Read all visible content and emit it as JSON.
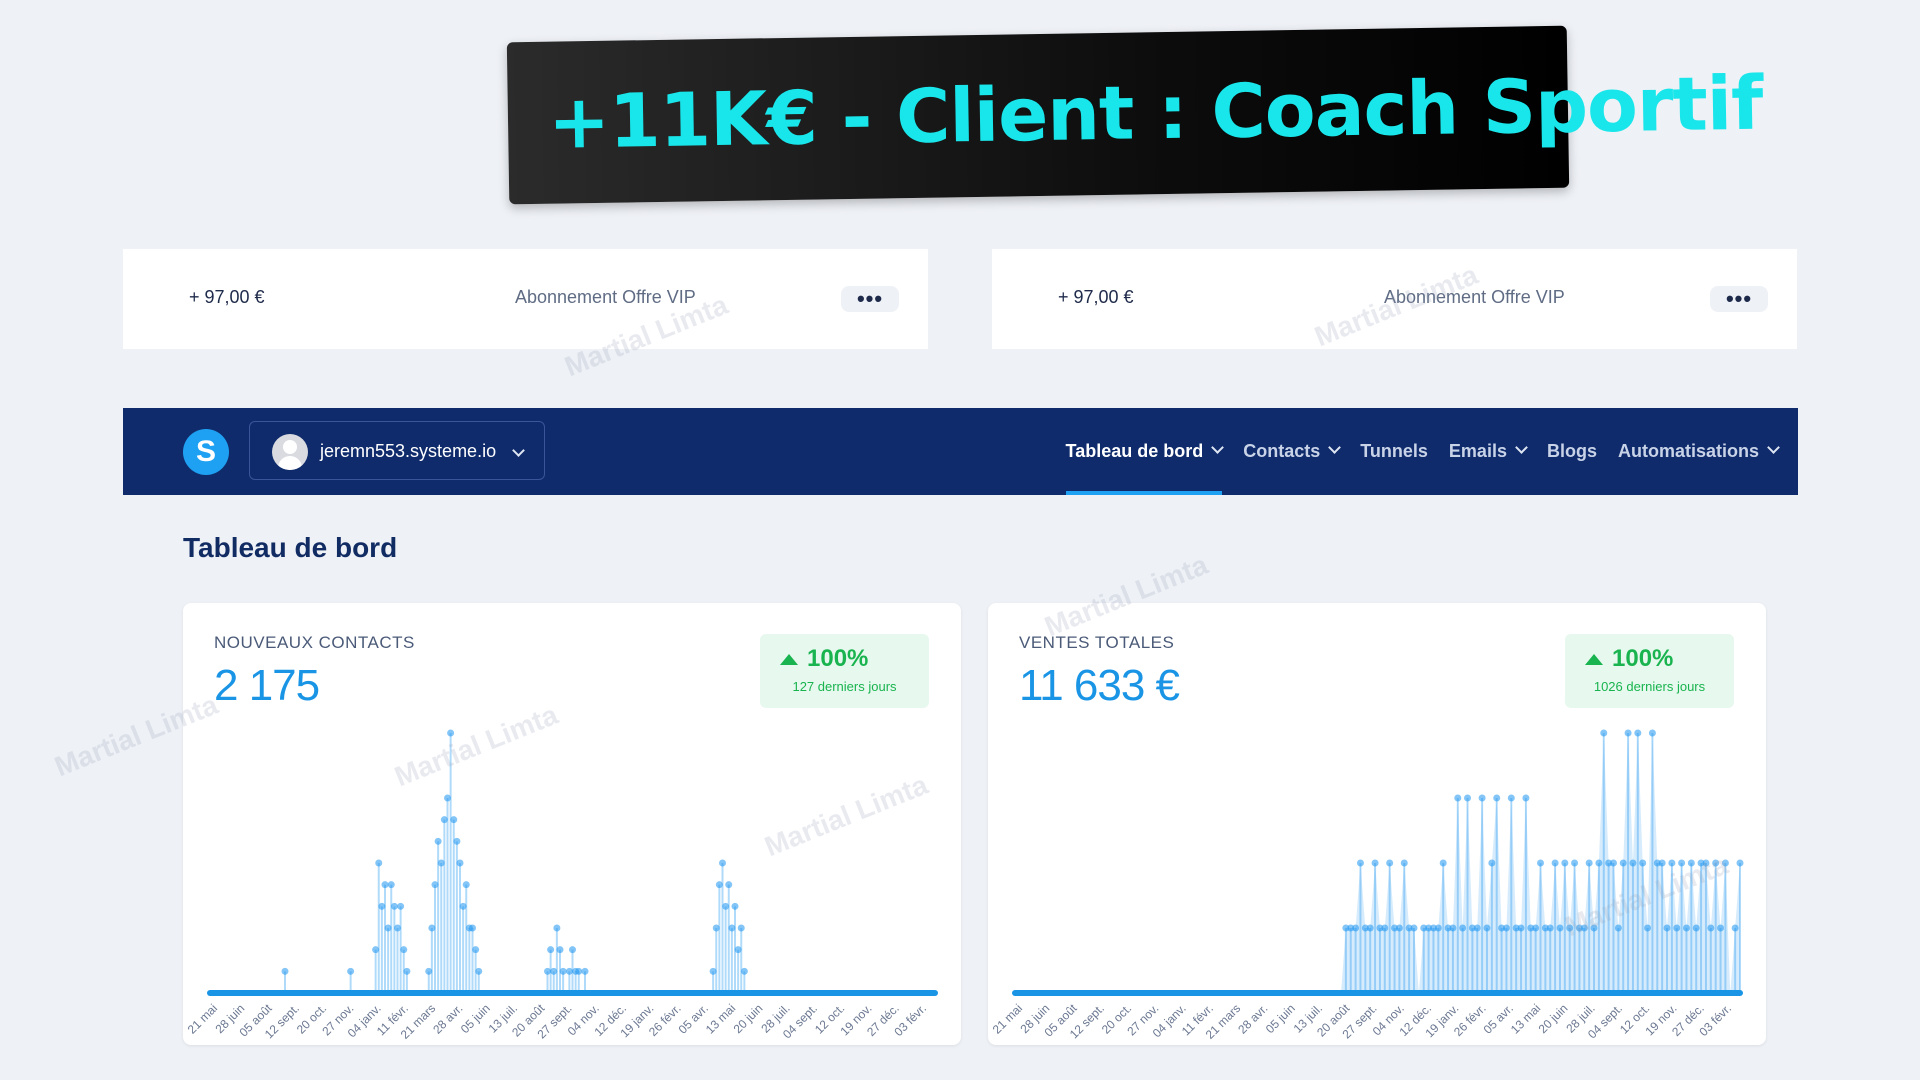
{
  "banner": {
    "title": "+11K€ - Client : Coach Sportif"
  },
  "payments": [
    {
      "amount": "+ 97,00 €",
      "label": "Abonnement Offre VIP",
      "menu": "•••"
    },
    {
      "amount": "+ 97,00 €",
      "label": "Abonnement Offre VIP",
      "menu": "•••"
    }
  ],
  "navbar": {
    "logo": "S",
    "account": "jeremn553.systeme.io",
    "items": [
      {
        "label": "Tableau de bord",
        "active": true,
        "dropdown": true
      },
      {
        "label": "Contacts",
        "dropdown": true
      },
      {
        "label": "Tunnels",
        "dropdown": false
      },
      {
        "label": "Emails",
        "dropdown": true
      },
      {
        "label": "Blogs",
        "dropdown": false
      },
      {
        "label": "Automatisations",
        "dropdown": true
      }
    ]
  },
  "page": {
    "title": "Tableau de bord"
  },
  "cards": [
    {
      "label": "NOUVEAUX CONTACTS",
      "value": "2 175",
      "badge_pct": "100%",
      "badge_sub": "127 derniers jours"
    },
    {
      "label": "VENTES TOTALES",
      "value": "11 633 €",
      "badge_pct": "100%",
      "badge_sub": "1026 derniers jours"
    }
  ],
  "watermark": "Martial Limta",
  "colors": {
    "accent": "#1a95e6",
    "navbar": "#0f2b6b",
    "banner_text": "#19e6ea",
    "positive": "#19b44f"
  },
  "chart_data": [
    {
      "type": "line",
      "title": "NOUVEAUX CONTACTS",
      "x_ticks": [
        "21 mai",
        "28 juin",
        "05 août",
        "12 sept.",
        "20 oct.",
        "27 nov.",
        "04 janv.",
        "11 févr.",
        "21 mars",
        "28 avr.",
        "05 juin",
        "13 juil.",
        "20 août",
        "27 sept.",
        "04 nov.",
        "12 déc.",
        "19 janv.",
        "26 févr.",
        "05 avr.",
        "13 mai",
        "20 juin",
        "28 juil.",
        "04 sept.",
        "12 oct.",
        "19 nov.",
        "27 déc.",
        "03 févr."
      ],
      "series": [
        {
          "values": [
            0,
            0,
            0,
            0,
            0,
            0,
            0,
            0,
            0,
            0,
            0,
            0,
            0,
            0,
            0,
            0,
            0,
            0,
            0,
            0,
            0,
            0,
            0,
            0,
            1,
            0,
            0,
            0,
            0,
            0,
            0,
            0,
            0,
            0,
            0,
            0,
            0,
            0,
            0,
            0,
            0,
            0,
            0,
            0,
            0,
            1,
            0,
            0,
            0,
            0,
            0,
            0,
            0,
            2,
            6,
            4,
            5,
            3,
            5,
            4,
            3,
            4,
            2,
            1,
            0,
            0,
            0,
            0,
            0,
            0,
            1,
            3,
            5,
            7,
            6,
            8,
            9,
            12,
            8,
            7,
            6,
            4,
            5,
            3,
            3,
            2,
            1,
            0,
            0,
            0,
            0,
            0,
            0,
            0,
            0,
            0,
            0,
            0,
            0,
            0,
            0,
            0,
            0,
            0,
            0,
            0,
            0,
            0,
            1,
            2,
            1,
            3,
            2,
            1,
            0,
            1,
            2,
            1,
            1,
            0,
            1,
            0,
            0,
            0,
            0,
            0,
            0,
            0,
            0,
            0,
            0,
            0,
            0,
            0,
            0,
            0,
            0,
            0,
            0,
            0,
            0,
            0,
            0,
            0,
            0,
            0,
            0,
            0,
            0,
            0,
            0,
            0,
            0,
            0,
            0,
            0,
            0,
            0,
            0,
            0,
            0,
            1,
            3,
            5,
            6,
            4,
            5,
            3,
            4,
            2,
            3,
            1,
            0,
            0,
            0,
            0,
            0,
            0,
            0,
            0,
            0,
            0,
            0,
            0,
            0,
            0,
            0,
            0,
            0,
            0,
            0,
            0,
            0,
            0,
            0,
            0,
            0,
            0,
            0,
            0,
            0,
            0,
            0,
            0,
            0,
            0,
            0,
            0,
            0,
            0,
            0,
            0,
            0,
            0,
            0,
            0,
            0,
            0,
            0,
            0,
            0,
            0,
            0,
            0,
            0,
            0,
            0,
            0,
            0,
            0,
            0,
            0,
            0
          ]
        }
      ],
      "grid": false
    },
    {
      "type": "area",
      "title": "VENTES TOTALES",
      "x_ticks": [
        "21 mai",
        "28 juin",
        "05 août",
        "12 sept.",
        "20 oct.",
        "27 nov.",
        "04 janv.",
        "11 févr.",
        "21 mars",
        "28 avr.",
        "05 juin",
        "13 juil.",
        "20 août",
        "27 sept.",
        "04 nov.",
        "12 déc.",
        "19 janv.",
        "26 févr.",
        "05 avr.",
        "13 mai",
        "20 juin",
        "28 juil.",
        "04 sept.",
        "12 oct.",
        "19 nov.",
        "27 déc.",
        "03 févr."
      ],
      "series": [
        {
          "values": [
            0,
            0,
            0,
            0,
            0,
            0,
            0,
            0,
            0,
            0,
            0,
            0,
            0,
            0,
            0,
            0,
            0,
            0,
            0,
            0,
            0,
            0,
            0,
            0,
            0,
            0,
            0,
            0,
            0,
            0,
            0,
            0,
            0,
            0,
            0,
            0,
            0,
            0,
            0,
            0,
            0,
            0,
            0,
            0,
            0,
            0,
            0,
            0,
            0,
            0,
            0,
            0,
            0,
            0,
            0,
            0,
            0,
            0,
            0,
            0,
            0,
            0,
            0,
            0,
            0,
            0,
            0,
            0,
            97,
            97,
            97,
            194,
            97,
            97,
            194,
            97,
            97,
            194,
            97,
            97,
            194,
            97,
            97,
            0,
            97,
            97,
            97,
            97,
            194,
            97,
            97,
            291,
            97,
            291,
            97,
            97,
            291,
            97,
            194,
            291,
            97,
            97,
            291,
            97,
            97,
            291,
            97,
            97,
            194,
            97,
            97,
            194,
            97,
            194,
            97,
            194,
            97,
            97,
            194,
            97,
            194,
            388,
            194,
            194,
            97,
            194,
            388,
            194,
            388,
            194,
            97,
            388,
            194,
            194,
            97,
            194,
            97,
            194,
            97,
            194,
            97,
            194,
            194,
            97,
            194,
            97,
            194,
            0,
            97,
            194
          ]
        }
      ],
      "grid": false
    }
  ]
}
